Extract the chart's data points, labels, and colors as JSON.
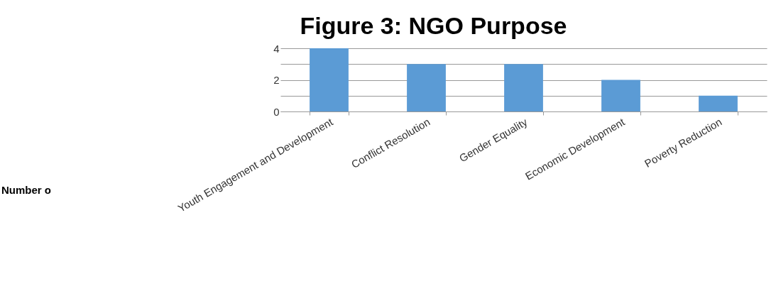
{
  "chart_data": {
    "type": "bar",
    "title": "Figure 3: NGO Purpose",
    "annotations": [
      "Number o"
    ],
    "categories": [
      "Youth Engagement and Development",
      "Conflict Resolution",
      "Gender Equality",
      "Economic Development",
      "Poverty Reduction"
    ],
    "values": [
      4,
      3,
      3,
      2,
      1
    ],
    "color": "#5b9bd5",
    "ylim": [
      0,
      4
    ],
    "yticks": [
      0,
      {
        "value": 1,
        "label": null
      },
      2,
      {
        "value": 3,
        "label": null
      },
      4
    ],
    "grid": "y"
  }
}
